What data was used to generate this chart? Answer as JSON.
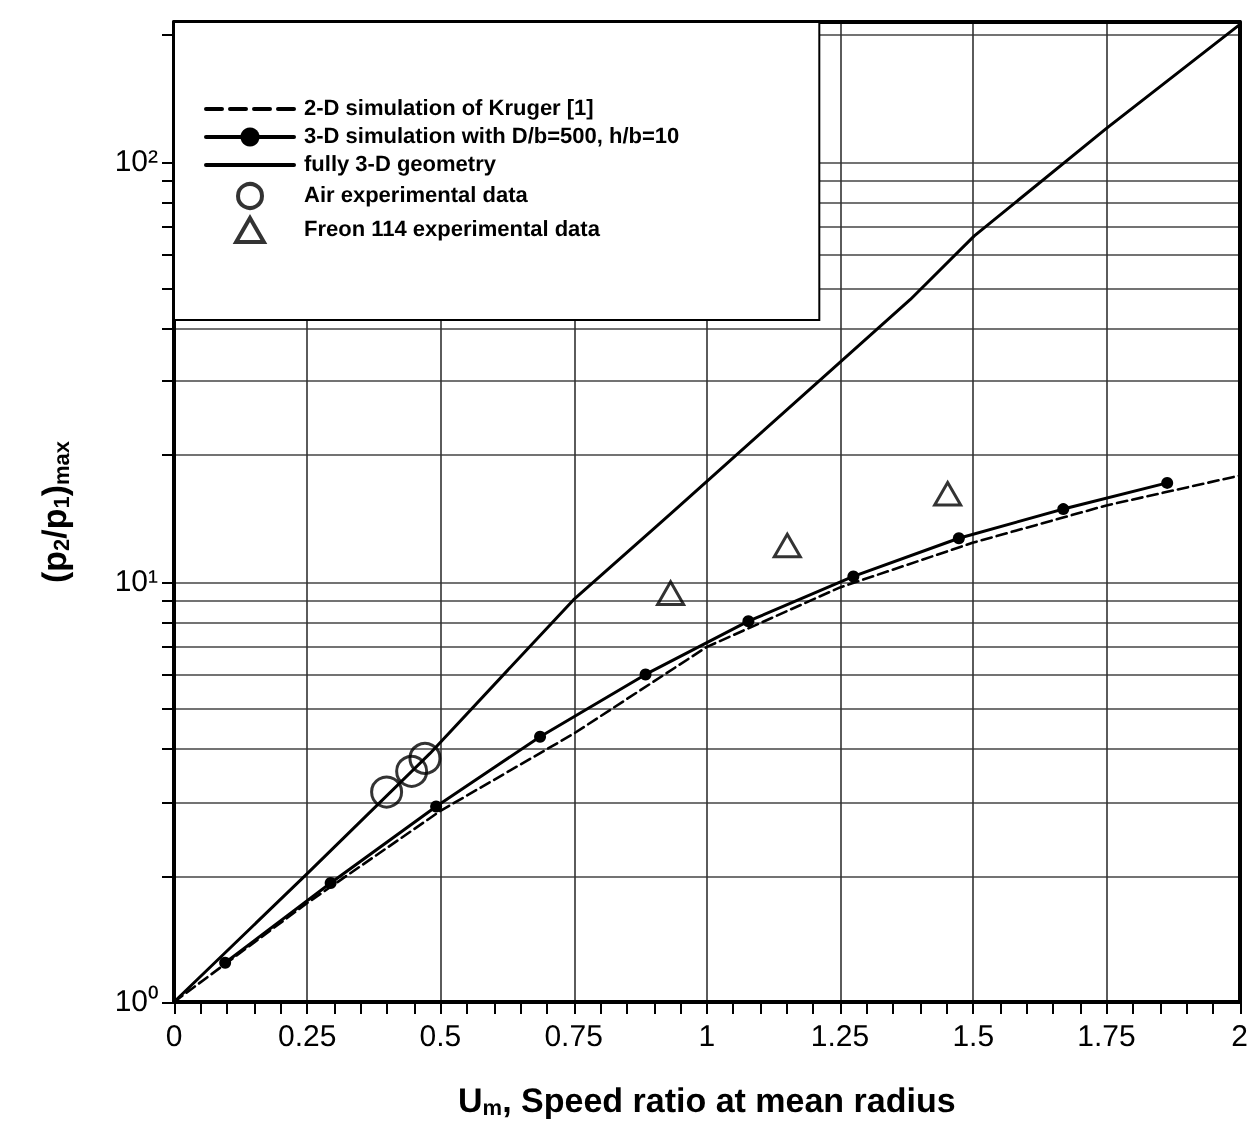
{
  "chart_data": {
    "type": "line",
    "xlabel": "U$_{m}$, Speed ratio at mean radius",
    "ylabel": "(p$_{2}$/p$_{1}$)$_{max}$",
    "xlim": [
      0,
      2
    ],
    "xticks": [
      0,
      0.25,
      0.5,
      0.75,
      1,
      1.25,
      1.5,
      1.75,
      2
    ],
    "ylim": [
      1,
      215
    ],
    "yticks": [
      {
        "value": 1,
        "label": "10⁰"
      },
      {
        "value": 10,
        "label": "10¹"
      },
      {
        "value": 100,
        "label": "10²"
      }
    ],
    "log": "y",
    "grid": true,
    "legend": "top left",
    "series": [
      {
        "name": "2-D simulation of Kruger [1]",
        "color": "#000000",
        "line_style": "dashed",
        "marker": "none",
        "x": [
          0,
          0.25,
          0.5,
          0.75,
          1.0,
          1.25,
          1.5,
          1.75,
          2.0
        ],
        "values": [
          1,
          1.72,
          2.85,
          4.35,
          7.0,
          9.7,
          12.4,
          15.2,
          17.9
        ]
      },
      {
        "name": "3-D simulation with D/b=500, h/b=10",
        "color": "#000000",
        "line_style": "solid",
        "marker": "circle",
        "x": [
          0.096,
          0.294,
          0.492,
          0.687,
          0.885,
          1.078,
          1.275,
          1.473,
          1.669,
          1.864
        ],
        "values": [
          1.24,
          1.92,
          2.92,
          4.28,
          6.02,
          8.06,
          10.3,
          12.7,
          14.9,
          17.2
        ]
      },
      {
        "name": "fully 3-D geometry",
        "color": "#000000",
        "line_style": "solid",
        "marker": "none",
        "x": [
          0,
          0.25,
          0.48,
          0.75,
          0.907,
          1.382,
          1.502,
          1.75,
          2.0
        ],
        "values": [
          1,
          2.02,
          3.9,
          9.07,
          13.6,
          47,
          66.6,
          120,
          212
        ]
      },
      {
        "name": "Air experimental data",
        "type": "scatter",
        "color": "#000000",
        "marker": "circle",
        "x": [
          0.399,
          0.446,
          0.471
        ],
        "values": [
          3.16,
          3.54,
          3.8
        ]
      },
      {
        "name": "Freon 114 experimental data",
        "type": "scatter",
        "color": "#000000",
        "marker": "triangle",
        "x": [
          0.932,
          1.151,
          1.452
        ],
        "values": [
          9.4,
          12.2,
          16.2
        ]
      }
    ]
  }
}
